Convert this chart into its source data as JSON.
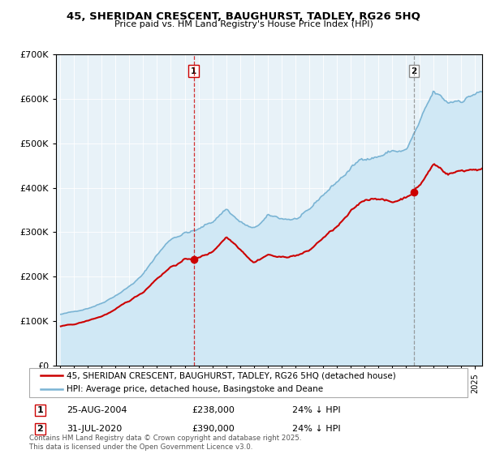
{
  "title": "45, SHERIDAN CRESCENT, BAUGHURST, TADLEY, RG26 5HQ",
  "subtitle": "Price paid vs. HM Land Registry's House Price Index (HPI)",
  "legend_line1": "45, SHERIDAN CRESCENT, BAUGHURST, TADLEY, RG26 5HQ (detached house)",
  "legend_line2": "HPI: Average price, detached house, Basingstoke and Deane",
  "footer": "Contains HM Land Registry data © Crown copyright and database right 2025.\nThis data is licensed under the Open Government Licence v3.0.",
  "annotation1_label": "1",
  "annotation1_date": "25-AUG-2004",
  "annotation1_price": "£238,000",
  "annotation1_hpi": "24% ↓ HPI",
  "annotation2_label": "2",
  "annotation2_date": "31-JUL-2020",
  "annotation2_price": "£390,000",
  "annotation2_hpi": "24% ↓ HPI",
  "hpi_color": "#7ab4d4",
  "hpi_fill_color": "#d0e8f5",
  "price_color": "#cc0000",
  "marker1_x": 2004.646,
  "marker2_x": 2020.583,
  "marker1_price": 238000,
  "marker2_price": 390000,
  "vline1_x": 2004.646,
  "vline2_x": 2020.583,
  "ylim_min": 0,
  "ylim_max": 700000,
  "xlim_min": 1994.7,
  "xlim_max": 2025.5,
  "bg_color": "#e8f2f8"
}
